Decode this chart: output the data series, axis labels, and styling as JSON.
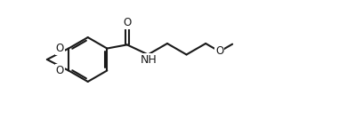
{
  "bg_color": "#ffffff",
  "line_color": "#1a1a1a",
  "line_width": 1.5,
  "font_size": 8.5,
  "figsize": [
    3.81,
    1.34
  ],
  "dpi": 100,
  "xlim": [
    -0.5,
    10.5
  ],
  "ylim": [
    0.0,
    3.6
  ]
}
